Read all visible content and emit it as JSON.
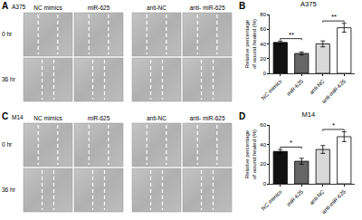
{
  "image_panels": [
    {
      "letter": "A",
      "title": "A375",
      "columns": [
        "NC mimics",
        "miR-625",
        "anti-NC",
        "anti- miR-625"
      ],
      "rows": [
        "0 hr",
        "36 hr"
      ]
    },
    {
      "letter": "C",
      "title": "M14",
      "columns": [
        "NC mimics",
        "miR-625",
        "anti-NC",
        "anti- miR-625"
      ],
      "rows": [
        "0 hr",
        "36 hr"
      ]
    }
  ],
  "chart_data": [
    {
      "letter": "B",
      "type": "bar",
      "title": "A375",
      "categories": [
        "NC mimics",
        "miR-625",
        "anti-NC",
        "anti-miR-625"
      ],
      "values": [
        42,
        27,
        40,
        62
      ],
      "errors": [
        2,
        2,
        4,
        6
      ],
      "colors": [
        "#111111",
        "#666666",
        "#d9d9d9",
        "#ffffff"
      ],
      "ylabel": "Relative percentage of wound healed (%)",
      "ylim": [
        0,
        80
      ],
      "yticks": [
        0,
        20,
        40,
        60,
        80
      ],
      "grid": false,
      "annotations": [
        {
          "between": [
            "NC mimics",
            "miR-625"
          ],
          "text": "**"
        },
        {
          "between": [
            "anti-NC",
            "anti-miR-625"
          ],
          "text": "**"
        }
      ]
    },
    {
      "letter": "D",
      "type": "bar",
      "title": "M14",
      "categories": [
        "NC mimics",
        "miR-625",
        "anti-NC",
        "anti-miR-625"
      ],
      "values": [
        33,
        23,
        35,
        48
      ],
      "errors": [
        2,
        3,
        4,
        5
      ],
      "colors": [
        "#111111",
        "#666666",
        "#d9d9d9",
        "#ffffff"
      ],
      "ylabel": "Relative percentage of wound healed (%)",
      "ylim": [
        0,
        60
      ],
      "yticks": [
        0,
        20,
        40,
        60
      ],
      "grid": false,
      "annotations": [
        {
          "between": [
            "NC mimics",
            "miR-625"
          ],
          "text": "*"
        },
        {
          "between": [
            "anti-NC",
            "anti-miR-625"
          ],
          "text": "*"
        }
      ]
    }
  ]
}
